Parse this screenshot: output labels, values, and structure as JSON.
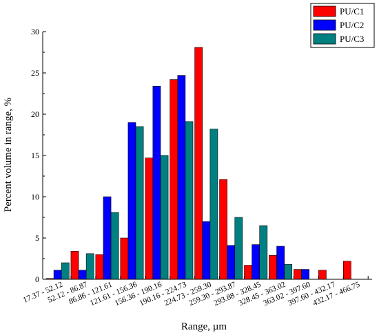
{
  "chart_data": {
    "type": "bar",
    "title": "",
    "xlabel": "Range, µm",
    "ylabel": "Percent volume in range, %",
    "ylim": [
      0,
      30
    ],
    "yticks": [
      0,
      5,
      10,
      15,
      20,
      25,
      30
    ],
    "grid": false,
    "legend_position": "top-right",
    "categories": [
      "17.37 - 52.12",
      "52.12 - 86.87",
      "86.86 - 121.61",
      "121.61 - 156.36",
      "156.36 - 190.16",
      "190.16 - 224.73",
      "224.73 - 259.30",
      "259.30 - 293.87",
      "293.88 - 328.45",
      "328.45 - 363.02",
      "363.02 - 397.60",
      "397.60 - 432.17",
      "432.17 - 466.75"
    ],
    "series": [
      {
        "name": "PU/C1",
        "color": "#ff0000",
        "values": [
          0.1,
          3.4,
          3.0,
          5.0,
          14.7,
          24.2,
          28.1,
          12.1,
          1.7,
          2.9,
          1.2,
          1.1,
          2.2
        ]
      },
      {
        "name": "PU/C2",
        "color": "#0000ff",
        "values": [
          1.1,
          1.1,
          10.0,
          19.0,
          23.4,
          24.7,
          7.0,
          4.1,
          4.2,
          4.0,
          1.2,
          0,
          0
        ]
      },
      {
        "name": "PU/C3",
        "color": "#008080",
        "values": [
          2.0,
          3.1,
          8.1,
          18.5,
          15.0,
          19.1,
          18.2,
          7.5,
          6.5,
          1.8,
          0,
          0,
          0
        ]
      }
    ]
  }
}
